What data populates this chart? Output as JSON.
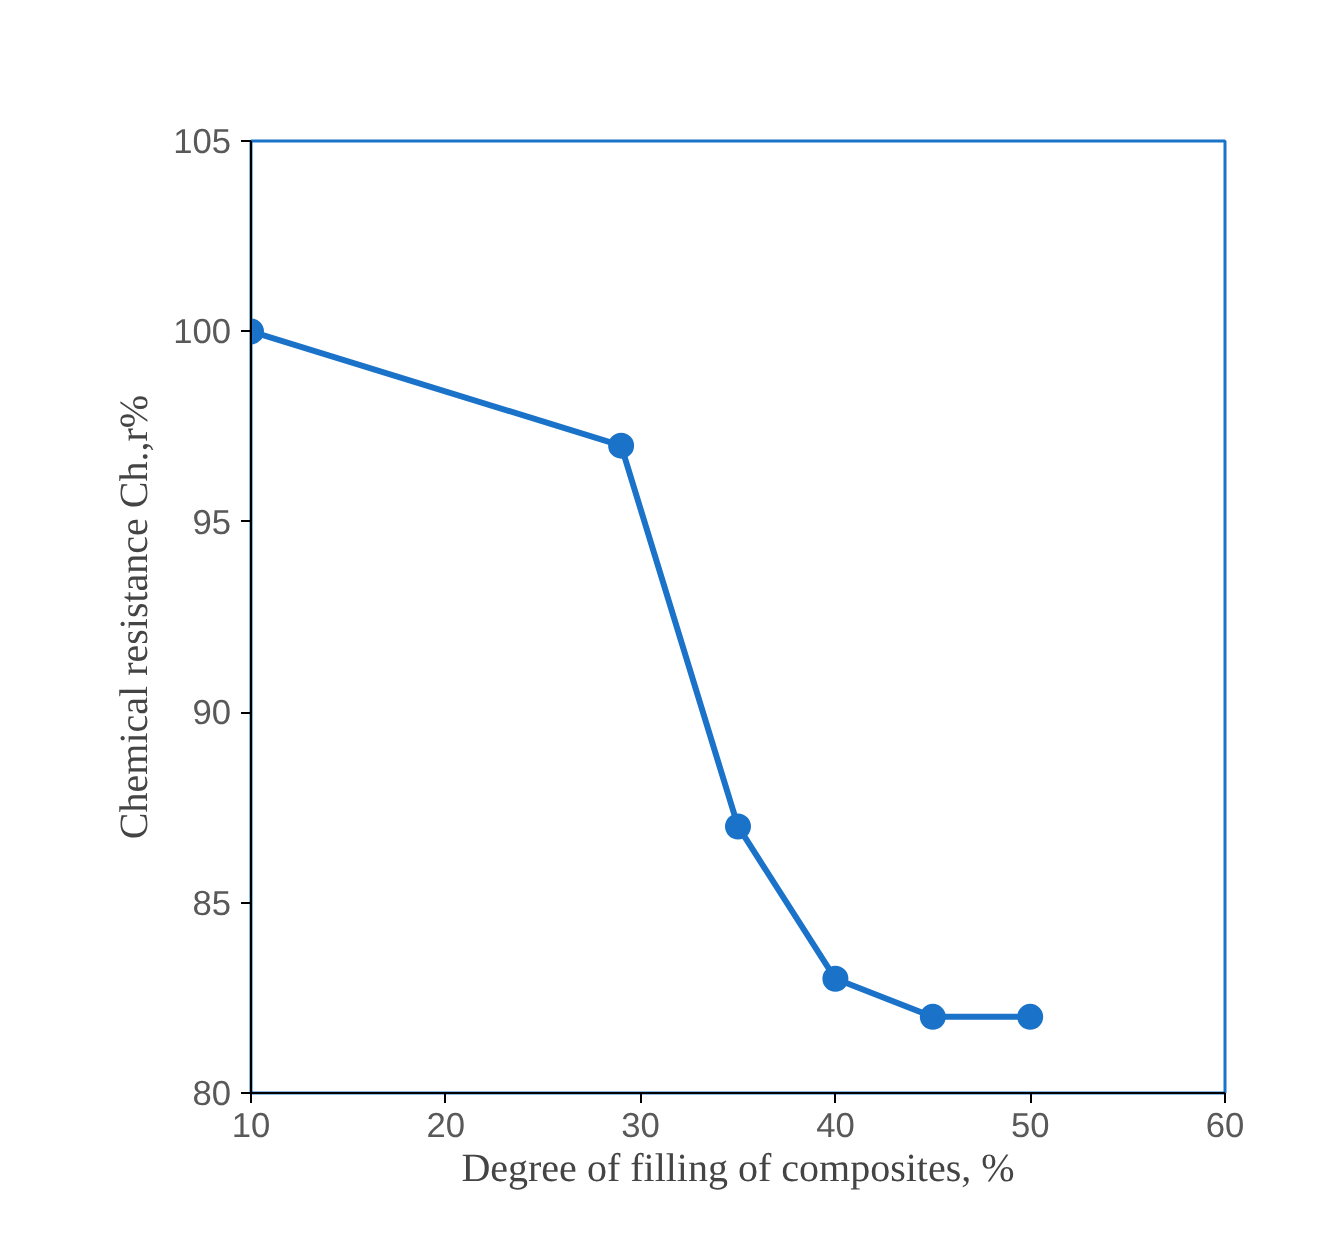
{
  "chart_data": {
    "type": "line",
    "xlabel": "Degree of filling of composites, %",
    "ylabel": "Chemical resistance Ch.,r%",
    "x": [
      10,
      29,
      35,
      40,
      45,
      50
    ],
    "series": [
      {
        "color": "#1a73c9",
        "values": [
          100,
          97,
          87,
          83,
          82,
          82
        ]
      }
    ],
    "xlim": [
      10,
      60
    ],
    "xticks": [
      10,
      20,
      30,
      40,
      50,
      60
    ],
    "ylim": [
      80,
      105
    ],
    "yticks": [
      80,
      85,
      90,
      95,
      100,
      105
    ],
    "grid": false,
    "marker": "circle",
    "line_style": "solid"
  }
}
